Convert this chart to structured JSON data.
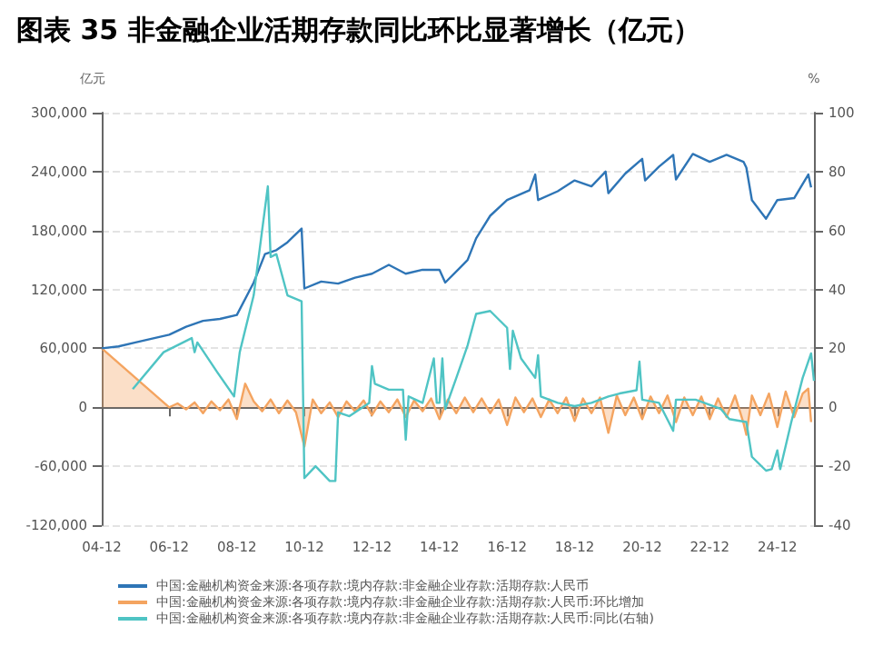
{
  "chart_data": {
    "type": "line",
    "title": "图表 35 非金融企业活期存款同比环比显著增长（亿元）",
    "ylabel": "亿元",
    "y2label": "%",
    "xlim": [
      "2004-12",
      "2026-01"
    ],
    "xticks": [
      {
        "value": "2004-12",
        "label": "04-12"
      },
      {
        "value": "2006-12",
        "label": "06-12"
      },
      {
        "value": "2008-12",
        "label": "08-12"
      },
      {
        "value": "2010-12",
        "label": "10-12"
      },
      {
        "value": "2012-12",
        "label": "12-12"
      },
      {
        "value": "2014-12",
        "label": "14-12"
      },
      {
        "value": "2016-12",
        "label": "16-12"
      },
      {
        "value": "2018-12",
        "label": "18-12"
      },
      {
        "value": "2020-12",
        "label": "20-12"
      },
      {
        "value": "2022-12",
        "label": "22-12"
      },
      {
        "value": "2024-12",
        "label": "24-12"
      }
    ],
    "ylim": [
      -120000,
      300000
    ],
    "yticks": [
      {
        "value": -120000,
        "label": "-120,000"
      },
      {
        "value": -60000,
        "label": "-60,000"
      },
      {
        "value": 0,
        "label": "0"
      },
      {
        "value": 60000,
        "label": "60,000"
      },
      {
        "value": 120000,
        "label": "120,000"
      },
      {
        "value": 180000,
        "label": "180,000"
      },
      {
        "value": 240000,
        "label": "240,000"
      },
      {
        "value": 300000,
        "label": "300,000"
      }
    ],
    "y2lim": [
      -40,
      100
    ],
    "y2ticks": [
      -40,
      -20,
      0,
      20,
      40,
      60,
      80,
      100
    ],
    "grid": "y",
    "legend": "bottom",
    "marker": "none",
    "line_style": "solid",
    "series": [
      {
        "name": "中国:金融机构资金来源:各项存款:境内存款:非金融企业存款:活期存款:人民币",
        "color": "#2e75b6",
        "x": [
          "2004-12",
          "2005-06",
          "2005-12",
          "2006-06",
          "2006-12",
          "2007-06",
          "2007-12",
          "2008-06",
          "2008-12",
          "2009-06",
          "2009-10",
          "2010-02",
          "2010-06",
          "2010-11",
          "2010-12",
          "2011-06",
          "2011-12",
          "2012-06",
          "2012-12",
          "2013-06",
          "2013-12",
          "2014-06",
          "2014-12",
          "2015-02",
          "2015-10",
          "2016-01",
          "2016-06",
          "2016-12",
          "2017-08",
          "2017-10",
          "2017-11",
          "2018-06",
          "2018-12",
          "2019-06",
          "2019-11",
          "2019-12",
          "2020-06",
          "2020-12",
          "2021-01",
          "2021-06",
          "2021-11",
          "2021-12",
          "2022-06",
          "2022-12",
          "2023-06",
          "2023-12",
          "2024-01",
          "2024-03",
          "2024-08",
          "2024-12",
          "2025-06",
          "2025-11",
          "2025-12"
        ],
        "values": [
          60000,
          62000,
          66000,
          70000,
          74000,
          82000,
          88000,
          90000,
          94000,
          127000,
          156000,
          160000,
          168000,
          182000,
          121000,
          128000,
          126000,
          132000,
          136000,
          145000,
          136000,
          140000,
          140000,
          127000,
          150000,
          172000,
          195000,
          211000,
          221000,
          237000,
          211000,
          220000,
          231000,
          225000,
          240000,
          218000,
          238000,
          253000,
          231000,
          245000,
          257000,
          232000,
          258000,
          250000,
          257000,
          250000,
          244000,
          211000,
          192000,
          211000,
          213000,
          237000,
          224000
        ]
      },
      {
        "name": "中国:金融机构资金来源:各项存款:境内存款:非金融企业存款:活期存款:人民币:环比增加",
        "color": "#f4a460",
        "type": "area",
        "x": [
          "2004-12",
          "2006-12",
          "2007-03",
          "2007-06",
          "2007-09",
          "2007-12",
          "2008-03",
          "2008-06",
          "2008-09",
          "2008-12",
          "2009-03",
          "2009-06",
          "2009-09",
          "2009-12",
          "2010-03",
          "2010-06",
          "2010-09",
          "2010-12",
          "2011-03",
          "2011-06",
          "2011-09",
          "2011-12",
          "2012-03",
          "2012-06",
          "2012-09",
          "2012-12",
          "2013-03",
          "2013-06",
          "2013-09",
          "2013-12",
          "2014-03",
          "2014-06",
          "2014-09",
          "2014-12",
          "2015-03",
          "2015-06",
          "2015-09",
          "2015-12",
          "2016-03",
          "2016-06",
          "2016-09",
          "2016-12",
          "2017-03",
          "2017-06",
          "2017-09",
          "2017-12",
          "2018-03",
          "2018-06",
          "2018-09",
          "2018-12",
          "2019-03",
          "2019-06",
          "2019-09",
          "2019-12",
          "2020-03",
          "2020-06",
          "2020-09",
          "2020-12",
          "2021-03",
          "2021-06",
          "2021-09",
          "2021-12",
          "2022-03",
          "2022-06",
          "2022-09",
          "2022-12",
          "2023-03",
          "2023-06",
          "2023-09",
          "2023-12",
          "2024-01",
          "2024-03",
          "2024-06",
          "2024-09",
          "2024-12",
          "2025-03",
          "2025-06",
          "2025-09",
          "2025-11",
          "2025-12"
        ],
        "values": [
          60000,
          0,
          4000,
          -2000,
          5000,
          -6000,
          6000,
          -3000,
          8000,
          -12000,
          24000,
          6000,
          -4000,
          8000,
          -6000,
          7000,
          -5000,
          -40000,
          8000,
          -6000,
          5000,
          -10000,
          6000,
          -4000,
          7000,
          -8000,
          6000,
          -5000,
          8000,
          -10000,
          7000,
          -4000,
          9000,
          -12000,
          8000,
          -6000,
          10000,
          -5000,
          9000,
          -6000,
          8000,
          -18000,
          10000,
          -5000,
          9000,
          -10000,
          8000,
          -6000,
          10000,
          -14000,
          9000,
          -6000,
          10000,
          -26000,
          12000,
          -8000,
          10000,
          -12000,
          11000,
          -6000,
          12000,
          -15000,
          10000,
          -8000,
          11000,
          -12000,
          9000,
          -10000,
          12000,
          -16000,
          -28000,
          12000,
          -8000,
          14000,
          -20000,
          16000,
          -10000,
          14000,
          19000,
          -15000
        ]
      },
      {
        "name": "中国:金融机构资金来源:各项存款:境内存款:非金融企业存款:活期存款:人民币:同比(右轴)",
        "color": "#4fc4c4",
        "axis": "y2",
        "x": [
          "2005-11",
          "2006-10",
          "2007-08",
          "2007-09",
          "2007-10",
          "2008-05",
          "2008-11",
          "2009-01",
          "2009-06",
          "2009-11",
          "2009-12",
          "2010-02",
          "2010-06",
          "2010-11",
          "2010-12",
          "2011-04",
          "2011-09",
          "2011-11",
          "2011-12",
          "2012-04",
          "2012-11",
          "2012-12",
          "2013-01",
          "2013-06",
          "2013-11",
          "2013-12",
          "2014-01",
          "2014-06",
          "2014-10",
          "2014-11",
          "2014-12",
          "2015-01",
          "2015-02",
          "2015-06",
          "2015-10",
          "2016-01",
          "2016-06",
          "2016-12",
          "2017-01",
          "2017-02",
          "2017-05",
          "2017-10",
          "2017-11",
          "2017-12",
          "2018-06",
          "2018-12",
          "2019-06",
          "2019-12",
          "2020-04",
          "2020-10",
          "2020-11",
          "2020-12",
          "2021-06",
          "2021-11",
          "2021-12",
          "2022-07",
          "2023-04",
          "2023-07",
          "2024-01",
          "2024-03",
          "2024-08",
          "2024-10",
          "2024-12",
          "2025-01",
          "2025-05",
          "2025-09",
          "2025-12",
          "2026-01"
        ],
        "values": [
          6.2,
          18.7,
          23.5,
          18.7,
          22,
          12,
          3.7,
          18.7,
          38,
          75,
          51,
          52,
          38,
          36,
          -24,
          -20,
          -25,
          -25,
          -1.7,
          -3,
          1.5,
          14,
          8,
          6,
          6,
          -11,
          3.7,
          1.5,
          16.6,
          1.5,
          1.5,
          16.6,
          -0.6,
          10,
          21,
          31.7,
          32.7,
          27,
          13,
          26,
          16.6,
          10,
          17.7,
          3.7,
          1.5,
          0.4,
          1.5,
          3.7,
          4.7,
          5.8,
          15.5,
          2.6,
          1.5,
          -8,
          2.6,
          2.6,
          -0.6,
          -4,
          -5,
          -16.8,
          -21.5,
          -21,
          -14.6,
          -21,
          -5,
          10,
          18.3,
          9
        ]
      }
    ]
  }
}
